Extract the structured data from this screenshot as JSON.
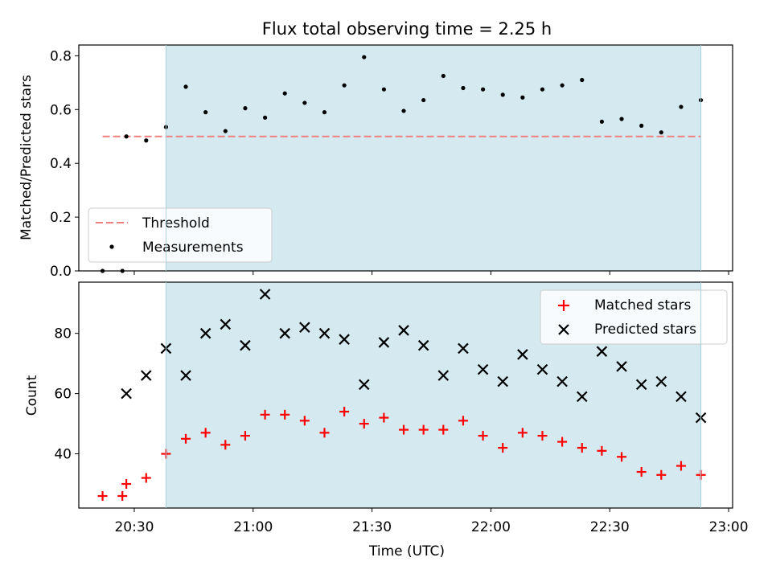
{
  "chart_data": [
    {
      "type": "scatter",
      "title": "Flux total observing time = 2.25 h",
      "xlabel": "",
      "ylabel": "Matched/Predicted stars",
      "xlim": [
        "20:16",
        "23:01"
      ],
      "ylim": [
        0,
        0.84
      ],
      "yticks": [
        0.0,
        0.2,
        0.4,
        0.6,
        0.8
      ],
      "ytick_labels": [
        "0.0",
        "0.2",
        "0.4",
        "0.6",
        "0.8"
      ],
      "shaded_span": [
        "20:38",
        "22:53"
      ],
      "shaded_color": "#d4eaf0",
      "series": [
        {
          "name": "Threshold",
          "kind": "dashed-line",
          "color": "#f08080",
          "x": [
            "20:22",
            "22:53"
          ],
          "values": [
            0.5,
            0.5
          ]
        },
        {
          "name": "Measurements",
          "kind": "dot",
          "color": "#000000",
          "x": [
            "20:22",
            "20:27",
            "20:28",
            "20:33",
            "20:38",
            "20:43",
            "20:48",
            "20:53",
            "20:58",
            "21:03",
            "21:08",
            "21:13",
            "21:18",
            "21:23",
            "21:28",
            "21:33",
            "21:38",
            "21:43",
            "21:48",
            "21:53",
            "21:58",
            "22:03",
            "22:08",
            "22:13",
            "22:18",
            "22:23",
            "22:28",
            "22:33",
            "22:38",
            "22:43",
            "22:48",
            "22:53"
          ],
          "values": [
            0.0,
            0.0,
            0.5,
            0.485,
            0.535,
            0.685,
            0.59,
            0.52,
            0.605,
            0.57,
            0.66,
            0.625,
            0.59,
            0.69,
            0.795,
            0.675,
            0.595,
            0.635,
            0.725,
            0.68,
            0.675,
            0.655,
            0.645,
            0.675,
            0.69,
            0.71,
            0.555,
            0.565,
            0.54,
            0.515,
            0.61,
            0.635
          ]
        }
      ],
      "legend": {
        "position": "lower-left",
        "entries": [
          "Threshold",
          "Measurements"
        ]
      }
    },
    {
      "type": "scatter",
      "title": "",
      "xlabel": "Time (UTC)",
      "ylabel": "Count",
      "xlim": [
        "20:16",
        "23:01"
      ],
      "ylim": [
        22,
        97
      ],
      "yticks": [
        40,
        60,
        80
      ],
      "ytick_labels": [
        "40",
        "60",
        "80"
      ],
      "xticks": [
        "20:30",
        "21:00",
        "21:30",
        "22:00",
        "22:30",
        "23:00"
      ],
      "shaded_span": [
        "20:38",
        "22:53"
      ],
      "shaded_color": "#d4eaf0",
      "series": [
        {
          "name": "Matched stars",
          "kind": "plus",
          "color": "#ff0000",
          "x": [
            "20:22",
            "20:27",
            "20:28",
            "20:33",
            "20:38",
            "20:43",
            "20:48",
            "20:53",
            "20:58",
            "21:03",
            "21:08",
            "21:13",
            "21:18",
            "21:23",
            "21:28",
            "21:33",
            "21:38",
            "21:43",
            "21:48",
            "21:53",
            "21:58",
            "22:03",
            "22:08",
            "22:13",
            "22:18",
            "22:23",
            "22:28",
            "22:33",
            "22:38",
            "22:43",
            "22:48",
            "22:53"
          ],
          "values": [
            26,
            26,
            30,
            32,
            40,
            45,
            47,
            43,
            46,
            53,
            53,
            51,
            47,
            54,
            50,
            52,
            48,
            48,
            48,
            51,
            46,
            42,
            47,
            46,
            44,
            42,
            41,
            39,
            34,
            33,
            36,
            33
          ]
        },
        {
          "name": "Predicted stars",
          "kind": "x",
          "color": "#000000",
          "x": [
            "20:28",
            "20:33",
            "20:38",
            "20:43",
            "20:48",
            "20:53",
            "20:58",
            "21:03",
            "21:08",
            "21:13",
            "21:18",
            "21:23",
            "21:28",
            "21:33",
            "21:38",
            "21:43",
            "21:48",
            "21:53",
            "21:58",
            "22:03",
            "22:08",
            "22:13",
            "22:18",
            "22:23",
            "22:28",
            "22:33",
            "22:38",
            "22:43",
            "22:48",
            "22:53"
          ],
          "values": [
            60,
            66,
            75,
            66,
            80,
            83,
            76,
            93,
            80,
            82,
            80,
            78,
            63,
            77,
            81,
            76,
            66,
            75,
            68,
            64,
            73,
            68,
            64,
            59,
            74,
            69,
            63,
            64,
            59,
            52
          ]
        }
      ],
      "legend": {
        "position": "upper-right",
        "entries": [
          "Matched stars",
          "Predicted stars"
        ]
      }
    }
  ]
}
